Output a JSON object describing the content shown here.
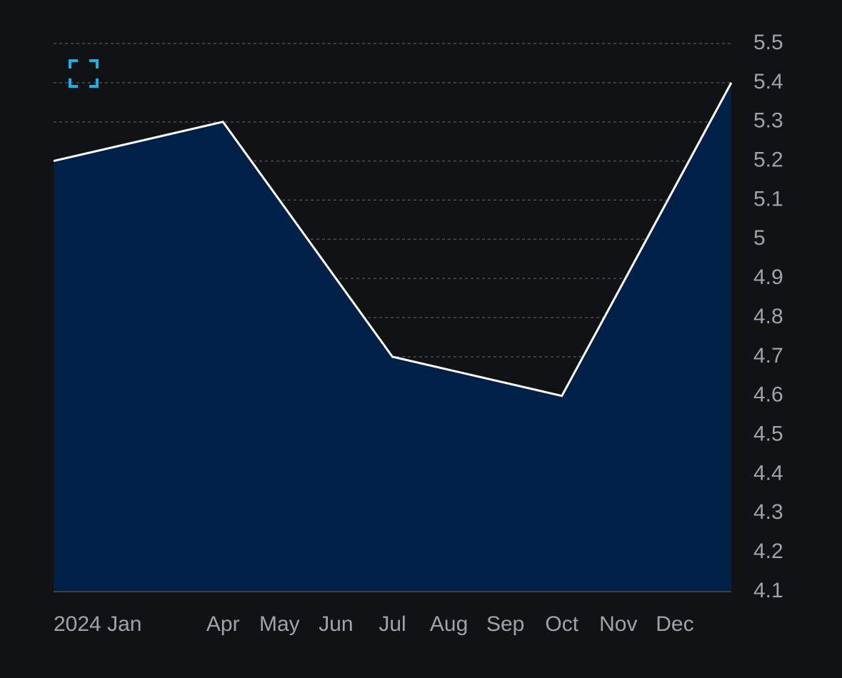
{
  "chart_data": {
    "type": "area",
    "categories": [
      "2024 Jan",
      null,
      null,
      "Apr",
      "May",
      "Jun",
      "Jul",
      "Aug",
      "Sep",
      "Oct",
      "Nov",
      "Dec",
      null
    ],
    "values": [
      5.2,
      null,
      null,
      5.3,
      null,
      null,
      4.7,
      null,
      null,
      4.6,
      null,
      null,
      5.4
    ],
    "line_color": "#ffffff",
    "fill_color": "#002147",
    "ylim": [
      4.1,
      5.5
    ],
    "yticks": [
      4.1,
      4.2,
      4.3,
      4.4,
      4.5,
      4.6,
      4.7,
      4.8,
      4.9,
      5,
      5.1,
      5.2,
      5.3,
      5.4,
      5.5
    ],
    "grid": true
  }
}
